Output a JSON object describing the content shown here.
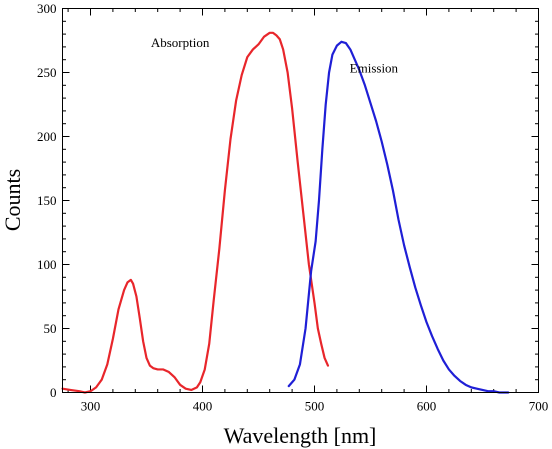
{
  "chart_data": {
    "type": "line",
    "xlabel": "Wavelength [nm]",
    "ylabel": "Counts",
    "xlim": [
      275,
      700
    ],
    "ylim": [
      0,
      300
    ],
    "x_ticks": [
      300,
      400,
      500,
      600,
      700
    ],
    "y_ticks": [
      0,
      50,
      100,
      150,
      200,
      250,
      300
    ],
    "grid": false,
    "frame": true,
    "series": [
      {
        "color": "#e8262b",
        "x": [
          275,
          282,
          290,
          295,
          300,
          305,
          310,
          315,
          320,
          325,
          330,
          333,
          336,
          338,
          341,
          344,
          347,
          350,
          353,
          356,
          360,
          365,
          370,
          375,
          380,
          385,
          390,
          395,
          398,
          402,
          406,
          410,
          415,
          420,
          425,
          430,
          435,
          440,
          445,
          450,
          455,
          460,
          463,
          466,
          469,
          472,
          476,
          480,
          485,
          490,
          495,
          500,
          503,
          506,
          509,
          512
        ],
        "y": [
          3,
          2,
          1,
          0,
          1,
          4,
          10,
          22,
          42,
          65,
          80,
          86,
          88,
          85,
          75,
          58,
          40,
          27,
          21,
          19,
          18,
          18,
          16,
          12,
          6,
          3,
          2,
          4,
          8,
          18,
          38,
          72,
          112,
          158,
          198,
          228,
          248,
          262,
          268,
          272,
          278,
          281,
          281,
          279,
          276,
          268,
          250,
          222,
          180,
          140,
          100,
          70,
          50,
          38,
          27,
          21
        ]
      },
      {
        "color": "#1f1fd6",
        "x": [
          477,
          482,
          487,
          492,
          497,
          501,
          504,
          507,
          510,
          513,
          516,
          520,
          524,
          528,
          532,
          536,
          540,
          545,
          550,
          555,
          560,
          565,
          570,
          575,
          580,
          585,
          590,
          595,
          600,
          605,
          610,
          615,
          620,
          625,
          630,
          635,
          640,
          645,
          650,
          655,
          660,
          665,
          670,
          673
        ],
        "y": [
          5,
          10,
          22,
          50,
          95,
          118,
          150,
          190,
          225,
          250,
          264,
          271,
          274,
          273,
          268,
          260,
          252,
          240,
          226,
          212,
          196,
          178,
          158,
          135,
          115,
          98,
          82,
          68,
          55,
          44,
          34,
          25,
          18,
          13,
          9,
          6,
          4,
          3,
          2,
          1,
          1,
          0,
          0,
          0
        ]
      }
    ],
    "annotations": [
      {
        "text": "Absorption",
        "x": 380,
        "y": 270
      },
      {
        "text": "Emission",
        "x": 553,
        "y": 250
      }
    ]
  }
}
